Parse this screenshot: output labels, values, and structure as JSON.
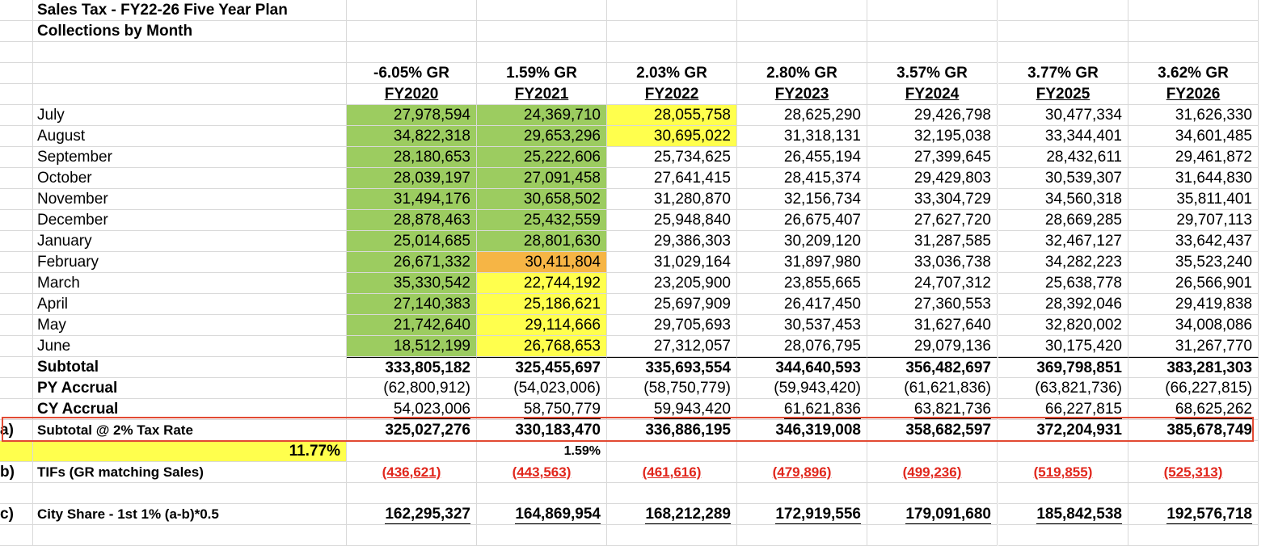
{
  "title": "Sales Tax - FY22-26 Five Year Plan",
  "subtitle": "Collections by Month",
  "growth_rates": [
    "-6.05% GR",
    "1.59% GR",
    "2.03% GR",
    "2.80% GR",
    "3.57% GR",
    "3.77% GR",
    "3.62% GR"
  ],
  "fiscal_years": [
    "FY2020",
    "FY2021",
    "FY2022",
    "FY2023",
    "FY2024",
    "FY2025",
    "FY2026"
  ],
  "months": [
    {
      "label": "July",
      "values": [
        "27,978,594",
        "24,369,710",
        "28,055,758",
        "28,625,290",
        "29,426,798",
        "30,477,334",
        "31,626,330"
      ],
      "fills": [
        "green",
        "green",
        "yellow",
        "",
        "",
        "",
        ""
      ]
    },
    {
      "label": "August",
      "values": [
        "34,822,318",
        "29,653,296",
        "30,695,022",
        "31,318,131",
        "32,195,038",
        "33,344,401",
        "34,601,485"
      ],
      "fills": [
        "green",
        "green",
        "yellow",
        "",
        "",
        "",
        ""
      ]
    },
    {
      "label": "September",
      "values": [
        "28,180,653",
        "25,222,606",
        "25,734,625",
        "26,455,194",
        "27,399,645",
        "28,432,611",
        "29,461,872"
      ],
      "fills": [
        "green",
        "green",
        "",
        "",
        "",
        "",
        ""
      ]
    },
    {
      "label": "October",
      "values": [
        "28,039,197",
        "27,091,458",
        "27,641,415",
        "28,415,374",
        "29,429,803",
        "30,539,307",
        "31,644,830"
      ],
      "fills": [
        "green",
        "green",
        "",
        "",
        "",
        "",
        ""
      ]
    },
    {
      "label": "November",
      "values": [
        "31,494,176",
        "30,658,502",
        "31,280,870",
        "32,156,734",
        "33,304,729",
        "34,560,318",
        "35,811,401"
      ],
      "fills": [
        "green",
        "green",
        "",
        "",
        "",
        "",
        ""
      ]
    },
    {
      "label": "December",
      "values": [
        "28,878,463",
        "25,432,559",
        "25,948,840",
        "26,675,407",
        "27,627,720",
        "28,669,285",
        "29,707,113"
      ],
      "fills": [
        "green",
        "green",
        "",
        "",
        "",
        "",
        ""
      ]
    },
    {
      "label": "January",
      "values": [
        "25,014,685",
        "28,801,630",
        "29,386,303",
        "30,209,120",
        "31,287,585",
        "32,467,127",
        "33,642,437"
      ],
      "fills": [
        "green",
        "green",
        "",
        "",
        "",
        "",
        ""
      ]
    },
    {
      "label": "February",
      "values": [
        "26,671,332",
        "30,411,804",
        "31,029,164",
        "31,897,980",
        "33,036,738",
        "34,282,223",
        "35,523,240"
      ],
      "fills": [
        "green",
        "orange",
        "",
        "",
        "",
        "",
        ""
      ]
    },
    {
      "label": "March",
      "values": [
        "35,330,542",
        "22,744,192",
        "23,205,900",
        "23,855,665",
        "24,707,312",
        "25,638,778",
        "26,566,901"
      ],
      "fills": [
        "green",
        "yellow",
        "",
        "",
        "",
        "",
        ""
      ]
    },
    {
      "label": "April",
      "values": [
        "27,140,383",
        "25,186,621",
        "25,697,909",
        "26,417,450",
        "27,360,553",
        "28,392,046",
        "29,419,838"
      ],
      "fills": [
        "green",
        "yellow",
        "",
        "",
        "",
        "",
        ""
      ]
    },
    {
      "label": "May",
      "values": [
        "21,742,640",
        "29,114,666",
        "29,705,693",
        "30,537,453",
        "31,627,640",
        "32,820,002",
        "34,008,086"
      ],
      "fills": [
        "green",
        "yellow",
        "",
        "",
        "",
        "",
        ""
      ]
    },
    {
      "label": "June",
      "values": [
        "18,512,199",
        "26,768,653",
        "27,312,057",
        "28,076,795",
        "29,079,136",
        "30,175,420",
        "31,267,770"
      ],
      "fills": [
        "green",
        "yellow",
        "",
        "",
        "",
        "",
        ""
      ]
    }
  ],
  "subtotal": {
    "label": "Subtotal",
    "values": [
      "333,805,182",
      "325,455,697",
      "335,693,554",
      "344,640,593",
      "356,482,697",
      "369,798,851",
      "383,281,303"
    ]
  },
  "py_accrual": {
    "label": "PY Accrual",
    "values": [
      "(62,800,912)",
      "(54,023,006)",
      "(58,750,779)",
      "(59,943,420)",
      "(61,621,836)",
      "(63,821,736)",
      "(66,227,815)"
    ]
  },
  "cy_accrual": {
    "label": "CY Accrual",
    "values": [
      "54,023,006",
      "58,750,779",
      "59,943,420",
      "61,621,836",
      "63,821,736",
      "66,227,815",
      "68,625,262"
    ]
  },
  "subtotal_tax": {
    "marker": "a)",
    "label": "Subtotal @ 2% Tax Rate",
    "values": [
      "325,027,276",
      "330,183,470",
      "336,886,195",
      "346,319,008",
      "358,682,597",
      "372,204,931",
      "385,678,749"
    ]
  },
  "pct_row": {
    "a": "11.77%",
    "b": "1.59%"
  },
  "tifs": {
    "marker": "b)",
    "label": "TIFs (GR matching Sales)",
    "values": [
      "(436,621)",
      "(443,563)",
      "(461,616)",
      "(479,896)",
      "(499,236)",
      "(519,855)",
      "(525,313)"
    ]
  },
  "city_share": {
    "marker": "c)",
    "label": "City Share - 1st 1% (a-b)*0.5",
    "values": [
      "162,295,327",
      "164,869,954",
      "168,212,289",
      "172,919,556",
      "179,091,680",
      "185,842,538",
      "192,576,718"
    ]
  },
  "colors": {
    "green": "#9ccc60",
    "yellow": "#ffff4d",
    "orange": "#f6b545",
    "red_text": "#e1261c",
    "highlight_border": "#e24a33",
    "grid": "#d9d9d9"
  }
}
